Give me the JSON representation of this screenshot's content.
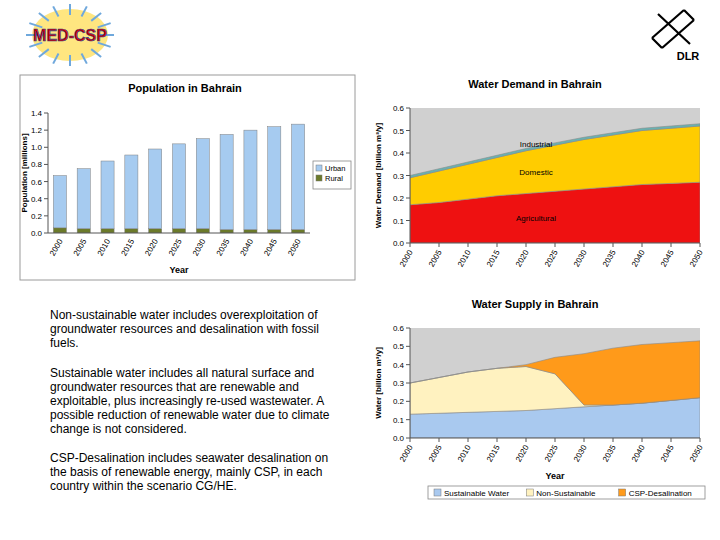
{
  "logos": {
    "left": "MED-CSP",
    "right": "DLR"
  },
  "notes": [
    "Non-sustainable water includes overexploitation of groundwater resources and desalination with fossil fuels.",
    "Sustainable water includes all natural surface and groundwater resources that are renewable and exploitable, plus increasingly re-used wastewater. A possible reduction of renewable water due to climate change is not considered.",
    "CSP-Desalination includes seawater desalination on the basis of renewable energy, mainly CSP, in each country within the scenario CG/HE."
  ],
  "chart_data": [
    {
      "type": "bar",
      "stacked": true,
      "title": "Population in Bahrain",
      "x_label": "Year",
      "y_label": "Population [millions]",
      "categories": [
        "2000",
        "2005",
        "2010",
        "2015",
        "2020",
        "2025",
        "2030",
        "2035",
        "2040",
        "2045",
        "2050"
      ],
      "series": [
        {
          "name": "Rural",
          "color": "#6b7a2a",
          "values": [
            0.06,
            0.05,
            0.05,
            0.05,
            0.05,
            0.05,
            0.05,
            0.04,
            0.04,
            0.04,
            0.04
          ]
        },
        {
          "name": "Urban",
          "color": "#a6cbf0",
          "values": [
            0.61,
            0.7,
            0.79,
            0.86,
            0.93,
            0.99,
            1.05,
            1.11,
            1.16,
            1.2,
            1.23
          ]
        }
      ],
      "ylim": [
        0,
        1.4
      ],
      "yticks": [
        {
          "value": 0,
          "label": "0.0"
        },
        0.2,
        0.4,
        0.6,
        0.8,
        {
          "value": 1,
          "label": "1.0"
        },
        1.2,
        1.4
      ],
      "grid": false,
      "legend": "right"
    },
    {
      "type": "area",
      "stacked": true,
      "title": "Water Demand in Bahrain",
      "y_label": "Water Demand [billion m³/y]",
      "x": [
        2000,
        2005,
        2010,
        2015,
        2020,
        2025,
        2030,
        2035,
        2040,
        2045,
        2050
      ],
      "series": [
        {
          "name": "Agricultural",
          "color": "#ee1111",
          "values": [
            0.17,
            0.18,
            0.195,
            0.21,
            0.22,
            0.23,
            0.24,
            0.25,
            0.26,
            0.265,
            0.27
          ]
        },
        {
          "name": "Domestic",
          "color": "#ffcc00",
          "values": [
            0.12,
            0.14,
            0.155,
            0.17,
            0.19,
            0.205,
            0.22,
            0.23,
            0.24,
            0.245,
            0.25
          ]
        },
        {
          "name": "Industrial",
          "color": "#66b3b3",
          "values": [
            0.01,
            0.01,
            0.01,
            0.01,
            0.01,
            0.01,
            0.01,
            0.01,
            0.01,
            0.01,
            0.01
          ]
        }
      ],
      "xlim": [
        2000,
        2050
      ],
      "xticks": [
        2000,
        2005,
        2010,
        2015,
        2020,
        2025,
        2030,
        2035,
        2040,
        2045,
        2050
      ],
      "ylim": [
        0,
        0.6
      ],
      "yticks": [
        {
          "value": 0,
          "label": "0.0"
        },
        0.1,
        0.2,
        0.3,
        0.4,
        0.5,
        0.6
      ],
      "grid": false
    },
    {
      "type": "area",
      "stacked": true,
      "title": "Water Supply in Bahrain",
      "x_label": "Year",
      "y_label": "Water [billion m³/y]",
      "x": [
        2000,
        2005,
        2010,
        2015,
        2020,
        2025,
        2030,
        2035,
        2040,
        2045,
        2050
      ],
      "series": [
        {
          "name": "Sustainable Water",
          "color": "#a9c9ef",
          "values": [
            0.13,
            0.135,
            0.14,
            0.145,
            0.15,
            0.16,
            0.17,
            0.18,
            0.19,
            0.205,
            0.22
          ]
        },
        {
          "name": "Non-Sustainable",
          "color": "#fff2c0",
          "values": [
            0.17,
            0.195,
            0.22,
            0.235,
            0.24,
            0.19,
            0.01,
            0,
            0,
            0,
            0
          ]
        },
        {
          "name": "CSP-Desalination",
          "color": "#ff9a1a",
          "values": [
            0,
            0,
            0,
            0,
            0.01,
            0.09,
            0.28,
            0.31,
            0.32,
            0.315,
            0.31
          ]
        }
      ],
      "xlim": [
        2000,
        2050
      ],
      "xticks": [
        2000,
        2005,
        2010,
        2015,
        2020,
        2025,
        2030,
        2035,
        2040,
        2045,
        2050
      ],
      "ylim": [
        0,
        0.6
      ],
      "yticks": [
        {
          "value": 0,
          "label": "0.0"
        },
        0.1,
        0.2,
        0.3,
        0.4,
        0.5,
        0.6
      ],
      "grid": false,
      "legend": "bottom"
    }
  ]
}
